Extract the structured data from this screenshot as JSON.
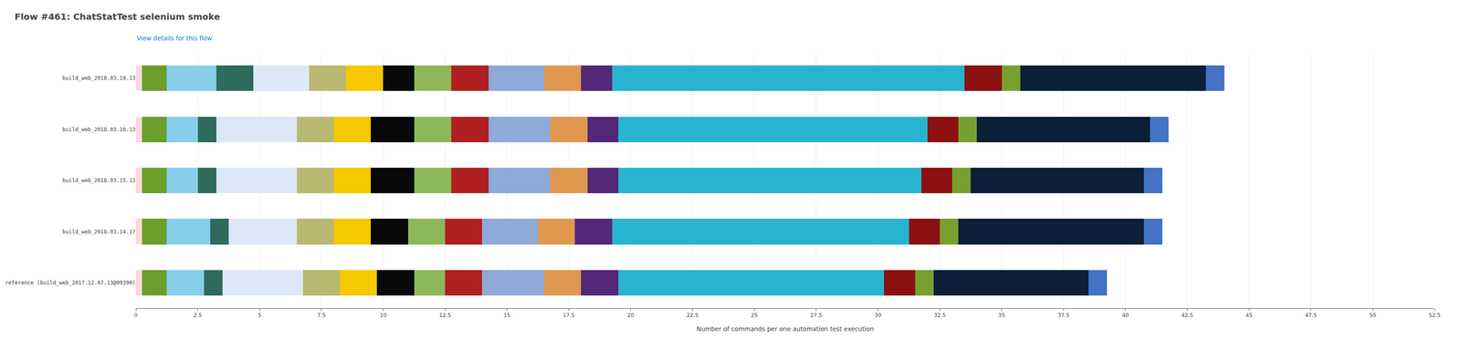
{
  "chart_data": {
    "type": "bar",
    "orientation": "horizontal",
    "stacked": true,
    "title": "Flow #461: ChatStatTest selenium smoke",
    "subtitle": "View details for this flow",
    "xlabel": "Number of commands per one automation test execution",
    "categories": [
      "build_web_2018.03.19.13",
      "build_web_2018.03.16.13",
      "build_web_2018.03.15.13",
      "build_web_2018.03.14.17",
      "reference (build_web_2017.12.07.13@99390)"
    ],
    "series": [
      {
        "color": "#fadadd",
        "values": [
          0.25,
          0.25,
          0.25,
          0.25,
          0.25
        ]
      },
      {
        "color": "#6b9e2a",
        "values": [
          1.0,
          1.0,
          1.0,
          1.0,
          1.0
        ]
      },
      {
        "color": "#87ceeb",
        "values": [
          2.0,
          1.25,
          1.25,
          1.75,
          1.5
        ]
      },
      {
        "color": "#2e6b5a",
        "values": [
          1.5,
          0.75,
          0.75,
          0.75,
          0.75
        ]
      },
      {
        "color": "#dce8f8",
        "values": [
          2.25,
          3.25,
          3.25,
          2.75,
          3.25
        ]
      },
      {
        "color": "#b8b870",
        "values": [
          1.5,
          1.5,
          1.5,
          1.5,
          1.5
        ]
      },
      {
        "color": "#f5c800",
        "values": [
          1.5,
          1.5,
          1.5,
          1.5,
          1.5
        ]
      },
      {
        "color": "#080808",
        "values": [
          1.25,
          1.75,
          1.75,
          1.5,
          1.5
        ]
      },
      {
        "color": "#8db85a",
        "values": [
          1.5,
          1.5,
          1.5,
          1.5,
          1.25
        ]
      },
      {
        "color": "#b02020",
        "values": [
          1.5,
          1.5,
          1.5,
          1.5,
          1.5
        ]
      },
      {
        "color": "#8eaad8",
        "values": [
          2.25,
          2.5,
          2.5,
          2.25,
          2.5
        ]
      },
      {
        "color": "#e09850",
        "values": [
          1.5,
          1.5,
          1.5,
          1.5,
          1.5
        ]
      },
      {
        "color": "#542878",
        "values": [
          1.25,
          1.25,
          1.25,
          1.5,
          1.5
        ]
      },
      {
        "color": "#28b4d0",
        "values": [
          14.25,
          12.5,
          12.25,
          12.0,
          10.75
        ]
      },
      {
        "color": "#8b1010",
        "values": [
          1.5,
          1.25,
          1.25,
          1.25,
          1.25
        ]
      },
      {
        "color": "#78a030",
        "values": [
          0.75,
          0.75,
          0.75,
          0.75,
          0.75
        ]
      },
      {
        "color": "#0c1e38",
        "values": [
          7.5,
          7.0,
          7.0,
          7.5,
          6.25
        ]
      },
      {
        "color": "#4472c4",
        "values": [
          0.75,
          0.75,
          0.75,
          0.75,
          0.75
        ]
      }
    ],
    "xlim": [
      0,
      52.5
    ],
    "xticks": [
      0,
      2.5,
      5,
      7.5,
      10,
      12.5,
      15,
      17.5,
      20,
      22.5,
      25,
      27.5,
      30,
      32.5,
      35,
      37.5,
      40,
      42.5,
      45,
      47.5,
      50,
      52.5
    ],
    "grid": true
  }
}
